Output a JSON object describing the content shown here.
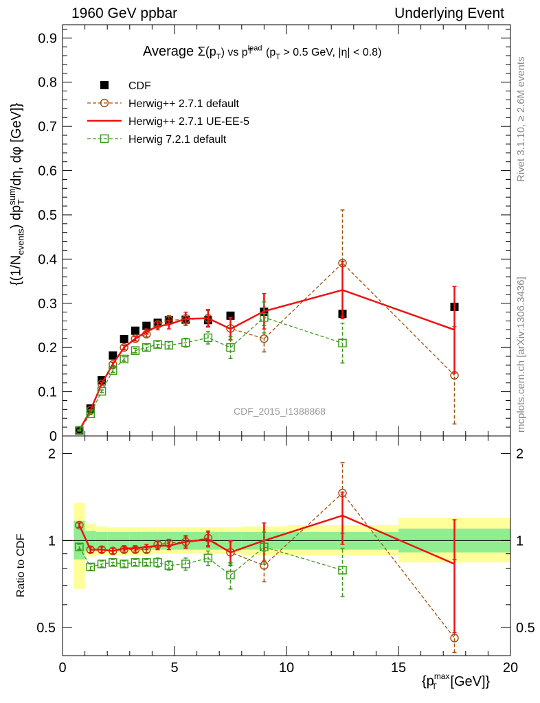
{
  "header": {
    "left": "1960 GeV ppbar",
    "right": "Underlying Event"
  },
  "side": {
    "rivet": "Rivet 3.1.10, ≥ 2.6M events",
    "mcplots": "mcplots.cern.ch [arXiv:1306.3436]"
  },
  "watermark": "CDF_2015_I1388868",
  "colors": {
    "cdf": "#000000",
    "herwigpp_default": "#a0520f",
    "herwigpp_ue": "#ee1111",
    "herwig7": "#3a9a1a",
    "band_inner": "#90ee90",
    "band_outer": "#ffff99"
  },
  "chart_data": {
    "type": "line",
    "title": "Average Σ(pT) vs pT^lead (pT > 0.5 GeV, |η| < 0.8)",
    "title_parts": {
      "pre": "Average ",
      "sigma": "Σ(p",
      "sub_t": "T",
      "close": ")",
      "vs": " vs p",
      "sup_lead": "lead",
      "post": "(p",
      "post_sub": "T",
      "post_tail": " > 0.5 GeV, |η| < 0.8)"
    },
    "xlabel": "{pT^max [GeV]}",
    "xlabel_parts": {
      "open": "{p",
      "sub": "T",
      "sup": "max",
      "tail": " [GeV]}"
    },
    "ylabel": "{(1/Nevents) dpT^sum/dη, dφ [GeV]}",
    "ylabel_parts": {
      "a": "{(1/N",
      "b": "events",
      "c": ") dp",
      "d": "sum",
      "e": "T",
      "f": "/dη, dφ [GeV]}"
    },
    "ratio_ylabel": "Ratio to CDF",
    "xlim": [
      0,
      20
    ],
    "ylim": [
      0,
      0.93
    ],
    "ratio_ylim": [
      0.4,
      2.3
    ],
    "ratio_log": true,
    "x_ticks": [
      "0",
      "5",
      "10",
      "15",
      "20"
    ],
    "y_ticks": [
      "0",
      "0.1",
      "0.2",
      "0.3",
      "0.4",
      "0.5",
      "0.6",
      "0.7",
      "0.8",
      "0.9"
    ],
    "ratio_ticks": [
      "0.5",
      "1",
      "2"
    ],
    "legend_position": "top-left",
    "series": [
      {
        "name": "CDF",
        "style": "marker-square",
        "points": [
          [
            0.75,
            0.012
          ],
          [
            1.25,
            0.062
          ],
          [
            1.75,
            0.126
          ],
          [
            2.25,
            0.182
          ],
          [
            2.75,
            0.219
          ],
          [
            3.25,
            0.238
          ],
          [
            3.75,
            0.249
          ],
          [
            4.25,
            0.256
          ],
          [
            4.75,
            0.262
          ],
          [
            5.5,
            0.263
          ],
          [
            6.5,
            0.262
          ],
          [
            7.5,
            0.272
          ],
          [
            9.0,
            0.281
          ],
          [
            12.5,
            0.276
          ],
          [
            17.5,
            0.292
          ]
        ]
      },
      {
        "name": "Herwig++ 2.7.1 default",
        "style": "dashed-circle",
        "points": [
          [
            0.75,
            0.013,
            0.001
          ],
          [
            1.25,
            0.058,
            0.002
          ],
          [
            1.75,
            0.118,
            0.003
          ],
          [
            2.25,
            0.162,
            0.004
          ],
          [
            2.75,
            0.2,
            0.005
          ],
          [
            3.25,
            0.22,
            0.005
          ],
          [
            3.75,
            0.23,
            0.006
          ],
          [
            4.25,
            0.252,
            0.008
          ],
          [
            4.75,
            0.262,
            0.01
          ],
          [
            5.5,
            0.263,
            0.012
          ],
          [
            6.5,
            0.266,
            0.02
          ],
          [
            7.5,
            0.243,
            0.025
          ],
          [
            9.0,
            0.22,
            0.03
          ],
          [
            12.5,
            0.391,
            0.12
          ],
          [
            17.5,
            0.137,
            0.11
          ]
        ],
        "ratio": [
          [
            0.75,
            1.13,
            0.02
          ],
          [
            1.25,
            0.93,
            0.02
          ],
          [
            1.75,
            0.93,
            0.02
          ],
          [
            2.25,
            0.92,
            0.02
          ],
          [
            2.75,
            0.93,
            0.02
          ],
          [
            3.25,
            0.93,
            0.02
          ],
          [
            3.75,
            0.93,
            0.02
          ],
          [
            4.25,
            0.97,
            0.03
          ],
          [
            4.75,
            0.98,
            0.03
          ],
          [
            5.5,
            0.99,
            0.04
          ],
          [
            6.5,
            1.02,
            0.06
          ],
          [
            7.5,
            0.91,
            0.08
          ],
          [
            9.0,
            0.82,
            0.1
          ],
          [
            12.5,
            1.46,
            0.4
          ],
          [
            17.5,
            0.46,
            0.4
          ]
        ]
      },
      {
        "name": "Herwig++ 2.7.1 UE-EE-5",
        "style": "solid-line",
        "points": [
          [
            0.75,
            0.013,
            0.001
          ],
          [
            1.25,
            0.058,
            0.002
          ],
          [
            1.75,
            0.118,
            0.003
          ],
          [
            2.25,
            0.163,
            0.004
          ],
          [
            2.75,
            0.2,
            0.005
          ],
          [
            3.25,
            0.22,
            0.005
          ],
          [
            3.75,
            0.236,
            0.006
          ],
          [
            4.25,
            0.248,
            0.008
          ],
          [
            4.75,
            0.252,
            0.01
          ],
          [
            5.5,
            0.265,
            0.015
          ],
          [
            6.5,
            0.266,
            0.018
          ],
          [
            7.5,
            0.242,
            0.025
          ],
          [
            9.0,
            0.282,
            0.04
          ],
          [
            12.5,
            0.33,
            0.065
          ],
          [
            17.5,
            0.24,
            0.098
          ]
        ],
        "ratio": [
          [
            0.75,
            1.13,
            0.02
          ],
          [
            1.25,
            0.93,
            0.02
          ],
          [
            1.75,
            0.93,
            0.02
          ],
          [
            2.25,
            0.92,
            0.02
          ],
          [
            2.75,
            0.94,
            0.02
          ],
          [
            3.25,
            0.94,
            0.02
          ],
          [
            3.75,
            0.95,
            0.02
          ],
          [
            4.25,
            0.96,
            0.03
          ],
          [
            4.75,
            0.96,
            0.03
          ],
          [
            5.5,
            0.99,
            0.05
          ],
          [
            6.5,
            1.01,
            0.06
          ],
          [
            7.5,
            0.91,
            0.09
          ],
          [
            9.0,
            1.0,
            0.15
          ],
          [
            12.5,
            1.22,
            0.25
          ],
          [
            17.5,
            0.83,
            0.35
          ]
        ]
      },
      {
        "name": "Herwig 7.2.1 default",
        "style": "dashed-square-open",
        "points": [
          [
            0.75,
            0.012,
            0.001
          ],
          [
            1.25,
            0.05,
            0.002
          ],
          [
            1.75,
            0.101,
            0.003
          ],
          [
            2.25,
            0.148,
            0.004
          ],
          [
            2.75,
            0.174,
            0.005
          ],
          [
            3.25,
            0.193,
            0.005
          ],
          [
            3.75,
            0.2,
            0.006
          ],
          [
            4.25,
            0.207,
            0.007
          ],
          [
            4.75,
            0.205,
            0.008
          ],
          [
            5.5,
            0.211,
            0.01
          ],
          [
            6.5,
            0.222,
            0.014
          ],
          [
            7.5,
            0.2,
            0.025
          ],
          [
            9.0,
            0.268,
            0.035
          ],
          [
            12.5,
            0.21,
            0.045
          ],
          [
            17.5,
            null,
            null
          ]
        ],
        "ratio": [
          [
            0.75,
            0.95,
            0.02
          ],
          [
            1.25,
            0.81,
            0.02
          ],
          [
            1.75,
            0.83,
            0.02
          ],
          [
            2.25,
            0.84,
            0.02
          ],
          [
            2.75,
            0.83,
            0.02
          ],
          [
            3.25,
            0.84,
            0.02
          ],
          [
            3.75,
            0.84,
            0.02
          ],
          [
            4.25,
            0.84,
            0.03
          ],
          [
            4.75,
            0.82,
            0.03
          ],
          [
            5.5,
            0.83,
            0.04
          ],
          [
            6.5,
            0.87,
            0.05
          ],
          [
            7.5,
            0.76,
            0.08
          ],
          [
            9.0,
            0.95,
            0.12
          ],
          [
            12.5,
            0.79,
            0.15
          ]
        ]
      }
    ],
    "ratio_bands": [
      {
        "x0": 0.5,
        "x1": 1.0,
        "inner": [
          0.86,
          1.17
        ],
        "outer": [
          0.68,
          1.35
        ]
      },
      {
        "x0": 1.0,
        "x1": 1.5,
        "inner": [
          0.92,
          1.08
        ],
        "outer": [
          0.88,
          1.14
        ]
      },
      {
        "x0": 1.5,
        "x1": 2.0,
        "inner": [
          0.93,
          1.07
        ],
        "outer": [
          0.89,
          1.12
        ]
      },
      {
        "x0": 2.0,
        "x1": 2.5,
        "inner": [
          0.93,
          1.07
        ],
        "outer": [
          0.89,
          1.11
        ]
      },
      {
        "x0": 2.5,
        "x1": 3.0,
        "inner": [
          0.93,
          1.07
        ],
        "outer": [
          0.89,
          1.11
        ]
      },
      {
        "x0": 3.0,
        "x1": 3.5,
        "inner": [
          0.93,
          1.07
        ],
        "outer": [
          0.89,
          1.11
        ]
      },
      {
        "x0": 3.5,
        "x1": 4.0,
        "inner": [
          0.93,
          1.07
        ],
        "outer": [
          0.89,
          1.11
        ]
      },
      {
        "x0": 4.0,
        "x1": 5.0,
        "inner": [
          0.93,
          1.07
        ],
        "outer": [
          0.9,
          1.11
        ]
      },
      {
        "x0": 5.0,
        "x1": 6.0,
        "inner": [
          0.93,
          1.07
        ],
        "outer": [
          0.9,
          1.11
        ]
      },
      {
        "x0": 6.0,
        "x1": 7.0,
        "inner": [
          0.93,
          1.07
        ],
        "outer": [
          0.9,
          1.11
        ]
      },
      {
        "x0": 7.0,
        "x1": 8.0,
        "inner": [
          0.93,
          1.07
        ],
        "outer": [
          0.9,
          1.11
        ]
      },
      {
        "x0": 8.0,
        "x1": 10.0,
        "inner": [
          0.93,
          1.07
        ],
        "outer": [
          0.89,
          1.12
        ]
      },
      {
        "x0": 10.0,
        "x1": 15.0,
        "inner": [
          0.93,
          1.07
        ],
        "outer": [
          0.89,
          1.13
        ]
      },
      {
        "x0": 15.0,
        "x1": 20.0,
        "inner": [
          0.91,
          1.1
        ],
        "outer": [
          0.84,
          1.2
        ]
      }
    ]
  }
}
